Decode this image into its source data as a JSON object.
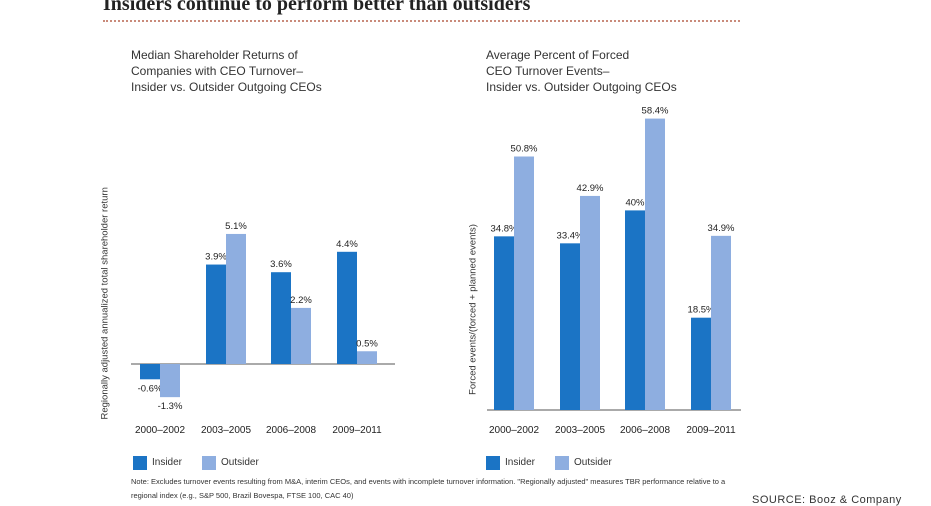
{
  "headline": "Insiders continue to perform better than outsiders",
  "colors": {
    "insider": "#1b74c5",
    "outsider": "#8eaee0",
    "rule": "#c98a7a"
  },
  "chart_data": [
    {
      "type": "bar",
      "title": "Median Shareholder Returns of\nCompanies with CEO Turnover–\nInsider vs. Outsider Outgoing CEOs",
      "ylabel": "Regionally adjusted annualized total shareholder return",
      "categories": [
        "2000–2002",
        "2003–2005",
        "2006–2008",
        "2009–2011"
      ],
      "series": [
        {
          "name": "Insider",
          "values": [
            -0.6,
            3.9,
            3.6,
            4.4
          ],
          "labels": [
            "-0.6%",
            "3.9%",
            "3.6%",
            "4.4%"
          ]
        },
        {
          "name": "Outsider",
          "values": [
            -1.3,
            5.1,
            2.2,
            0.5
          ],
          "labels": [
            "-1.3%",
            "5.1%",
            "2.2%",
            "0.5%"
          ]
        }
      ],
      "ylim": [
        -1.3,
        5.1
      ],
      "grid": false,
      "legend": "bottom-left"
    },
    {
      "type": "bar",
      "title": "Average Percent of Forced\nCEO Turnover Events–\nInsider vs. Outsider Outgoing CEOs",
      "ylabel": "Forced events/(forced + planned events)",
      "categories": [
        "2000–2002",
        "2003–2005",
        "2006–2008",
        "2009–2011"
      ],
      "series": [
        {
          "name": "Insider",
          "values": [
            34.8,
            33.4,
            40,
            18.5
          ],
          "labels": [
            "34.8%",
            "33.4%",
            "40%",
            "18.5%"
          ]
        },
        {
          "name": "Outsider",
          "values": [
            50.8,
            42.9,
            58.4,
            34.9
          ],
          "labels": [
            "50.8%",
            "42.9%",
            "58.4%",
            "34.9%"
          ]
        }
      ],
      "ylim": [
        0,
        58.4
      ],
      "grid": false,
      "legend": "bottom-left"
    }
  ],
  "legend": {
    "insider": "Insider",
    "outsider": "Outsider"
  },
  "note": "Note: Excludes turnover events resulting from M&A, interim CEOs, and events with incomplete turnover information. \"Regionally adjusted\" measures TBR performance relative to a regional index (e.g., S&P 500, Brazil Bovespa, FTSE 100, CAC 40)",
  "source": "SOURCE: Booz & Company"
}
